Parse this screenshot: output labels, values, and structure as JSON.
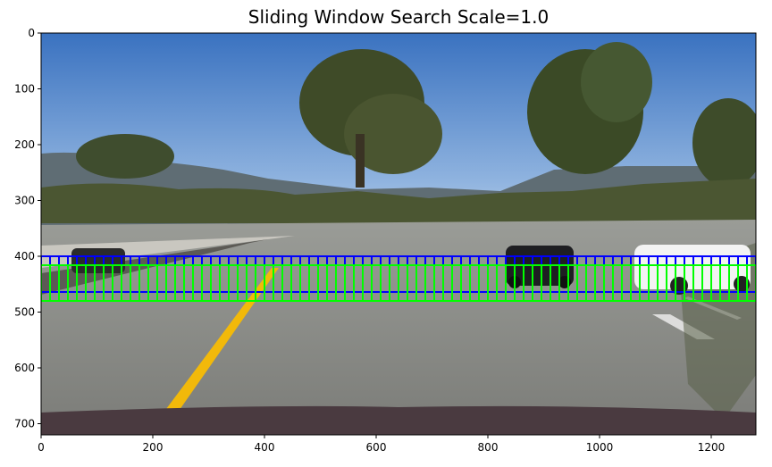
{
  "chart_data": {
    "type": "image",
    "title": "Sliding Window Search Scale=1.0",
    "xlim": [
      0,
      1280
    ],
    "ylim": [
      720,
      0
    ],
    "xticks": [
      0,
      200,
      400,
      600,
      800,
      1000,
      1200
    ],
    "yticks": [
      0,
      100,
      200,
      300,
      400,
      500,
      600,
      700
    ],
    "scene": {
      "description_colors": {
        "sky_top": "#3f78c4",
        "sky_bottom": "#a9c6e6",
        "hills": "#5d6b78",
        "trees": "#3d4a2a",
        "road": "#8b8f8c",
        "lane_yellow": "#f2b90a",
        "car_hood": "#4a3a40"
      }
    },
    "window_rows": [
      {
        "name": "blue-windows",
        "color": "#0000ff",
        "y_top": 400,
        "y_bottom": 464,
        "x_start": 0,
        "x_end": 1280,
        "window_size": 64,
        "step": 16
      },
      {
        "name": "green-windows",
        "color": "#00ff00",
        "y_top": 416,
        "y_bottom": 480,
        "x_start": 0,
        "x_end": 1280,
        "window_size": 64,
        "step": 16
      }
    ]
  }
}
